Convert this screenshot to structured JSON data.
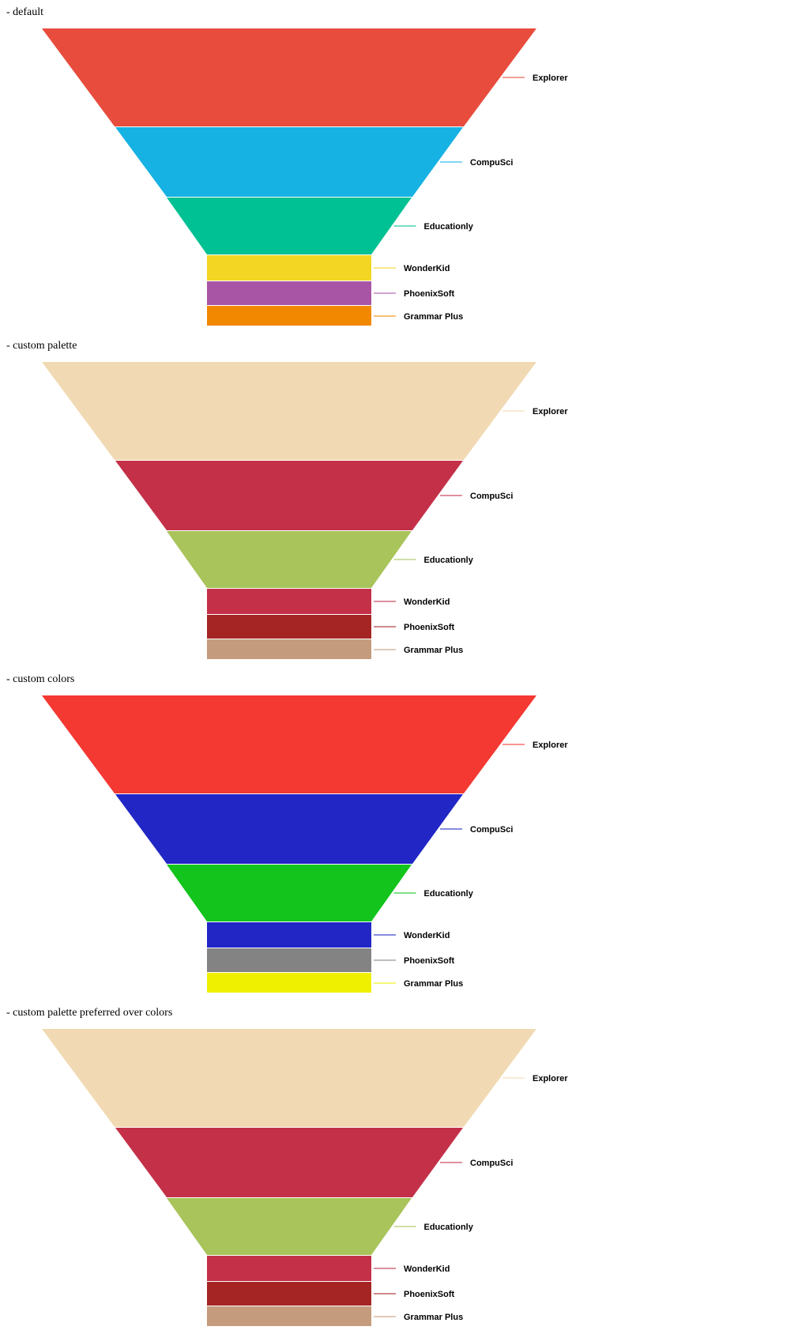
{
  "chart_data": [
    {
      "type": "funnel",
      "title": "- default",
      "categories": [
        "Explorer",
        "CompuSci",
        "Educationly",
        "WonderKid",
        "PhoenixSoft",
        "Grammar Plus"
      ],
      "colors": [
        "#e74c3c",
        "#16b2e3",
        "#00c193",
        "#f3d523",
        "#a855a5",
        "#f28800"
      ]
    },
    {
      "type": "funnel",
      "title": "- custom palette",
      "categories": [
        "Explorer",
        "CompuSci",
        "Educationly",
        "WonderKid",
        "PhoenixSoft",
        "Grammar Plus"
      ],
      "colors": [
        "#f1dab3",
        "#c33048",
        "#a8c45a",
        "#c33048",
        "#a52424",
        "#c49b7c"
      ]
    },
    {
      "type": "funnel",
      "title": "- custom colors",
      "categories": [
        "Explorer",
        "CompuSci",
        "Educationly",
        "WonderKid",
        "PhoenixSoft",
        "Grammar Plus"
      ],
      "colors": [
        "#f43832",
        "#2126c5",
        "#12c41c",
        "#2126c5",
        "#838383",
        "#eef000"
      ]
    },
    {
      "type": "funnel",
      "title": "- custom palette preferred over colors",
      "categories": [
        "Explorer",
        "CompuSci",
        "Educationly",
        "WonderKid",
        "PhoenixSoft",
        "Grammar Plus"
      ],
      "colors": [
        "#f1dab3",
        "#c33048",
        "#a8c45a",
        "#c33048",
        "#a52424",
        "#c49b7c"
      ]
    }
  ]
}
